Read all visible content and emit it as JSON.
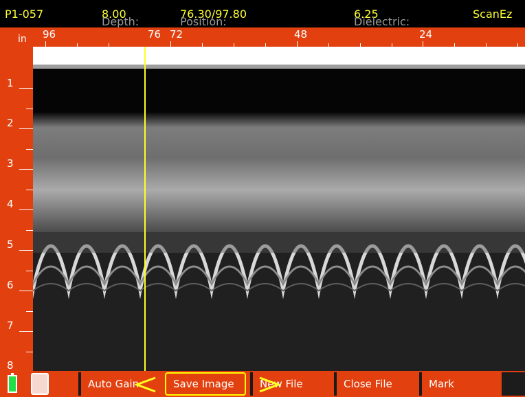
{
  "status": {
    "file_id": "P1-057",
    "depth_label": "Depth:",
    "depth_value": "8.00",
    "position_label": "Position: ",
    "position_value": "76.30/97.80",
    "dielectric_label": "Dielectric: ",
    "dielectric_value": "6.25",
    "app_name": "ScanEz"
  },
  "horizontal_ruler": {
    "unit": "in",
    "labels": [
      "96",
      "76",
      "72",
      "48",
      "24"
    ]
  },
  "vertical_ruler": {
    "labels": [
      "1",
      "2",
      "3",
      "4",
      "5",
      "6",
      "7",
      "8"
    ]
  },
  "cursor": {
    "position_in": 76.3
  },
  "softkeys": {
    "auto_gain": "Auto Gain",
    "save_image": "Save Image",
    "new_file": "New File",
    "close_file": "Close File",
    "mark": "Mark"
  },
  "icons": {
    "battery": "battery-icon",
    "card": "storage-card-icon",
    "left_arrow": "chevron-left-icon",
    "right_arrow": "chevron-right-icon"
  },
  "colors": {
    "accent": "#e2400f",
    "highlight": "#ffff33",
    "battery": "#22e04a"
  }
}
